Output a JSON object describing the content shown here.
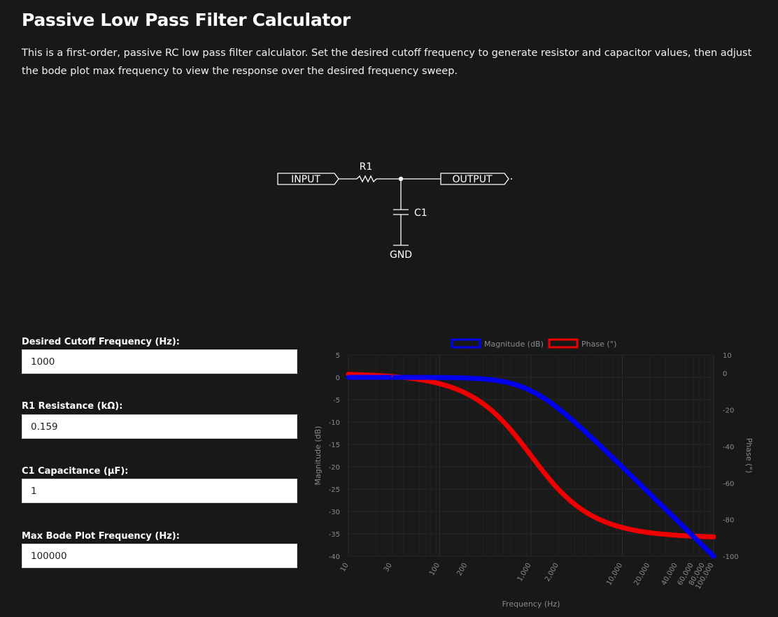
{
  "page": {
    "title": "Passive Low Pass Filter Calculator",
    "description": "This is a first-order, passive RC low pass filter calculator. Set the desired cutoff frequency to generate resistor and capacitor values, then adjust the bode plot max frequency to view the response over the desired frequency sweep."
  },
  "schematic": {
    "input_label": "INPUT",
    "output_label": "OUTPUT",
    "resistor_label": "R1",
    "capacitor_label": "C1",
    "ground_label": "GND"
  },
  "form": {
    "cutoff": {
      "label": "Desired Cutoff Frequency (Hz):",
      "value": "1000"
    },
    "resistance": {
      "label": "R1 Resistance (kΩ):",
      "value": "0.159"
    },
    "capacitance": {
      "label": "C1 Capacitance (µF):",
      "value": "1"
    },
    "max_freq": {
      "label": "Max Bode Plot Frequency (Hz):",
      "value": "100000"
    }
  },
  "colors": {
    "magnitude": "#0000ee",
    "phase": "#ee0000",
    "background": "#181818"
  },
  "chart_data": {
    "type": "line",
    "title": "",
    "xlabel": "Frequency (Hz)",
    "ylabel": "Magnitude (dB)",
    "y2label": "Phase (°)",
    "x_scale": "log",
    "x_ticks": [
      10,
      30,
      100,
      200,
      1000,
      2000,
      10000,
      20000,
      40000,
      60000,
      80000,
      100000
    ],
    "x_tick_labels": [
      "10",
      "30",
      "100",
      "200",
      "1,000",
      "2,000",
      "10,000",
      "20,000",
      "40,000",
      "60,000",
      "80,000",
      "100,000"
    ],
    "xlim": [
      10,
      100000
    ],
    "ylim": [
      -40,
      5
    ],
    "y_ticks": [
      5,
      0,
      -5,
      -10,
      -15,
      -20,
      -25,
      -30,
      -35,
      -40
    ],
    "y2lim": [
      -100,
      10
    ],
    "y2_ticks": [
      10,
      0,
      -20,
      -40,
      -60,
      -80,
      -100
    ],
    "legend": "top",
    "cutoff_hz": 1000,
    "x": [
      10,
      30,
      100,
      200,
      500,
      1000,
      2000,
      5000,
      10000,
      20000,
      50000,
      100000
    ],
    "series": [
      {
        "name": "Magnitude (dB)",
        "axis": "left",
        "values": [
          0,
          0,
          -0.04,
          -0.17,
          -0.97,
          -3.01,
          -6.99,
          -14.15,
          -20.04,
          -26.03,
          -33.98,
          -40.0
        ]
      },
      {
        "name": "Phase (°)",
        "axis": "right",
        "values": [
          -0.6,
          -1.7,
          -5.7,
          -11.3,
          -26.6,
          -45.0,
          -63.4,
          -78.7,
          -84.3,
          -87.1,
          -88.9,
          -89.4
        ]
      }
    ]
  }
}
